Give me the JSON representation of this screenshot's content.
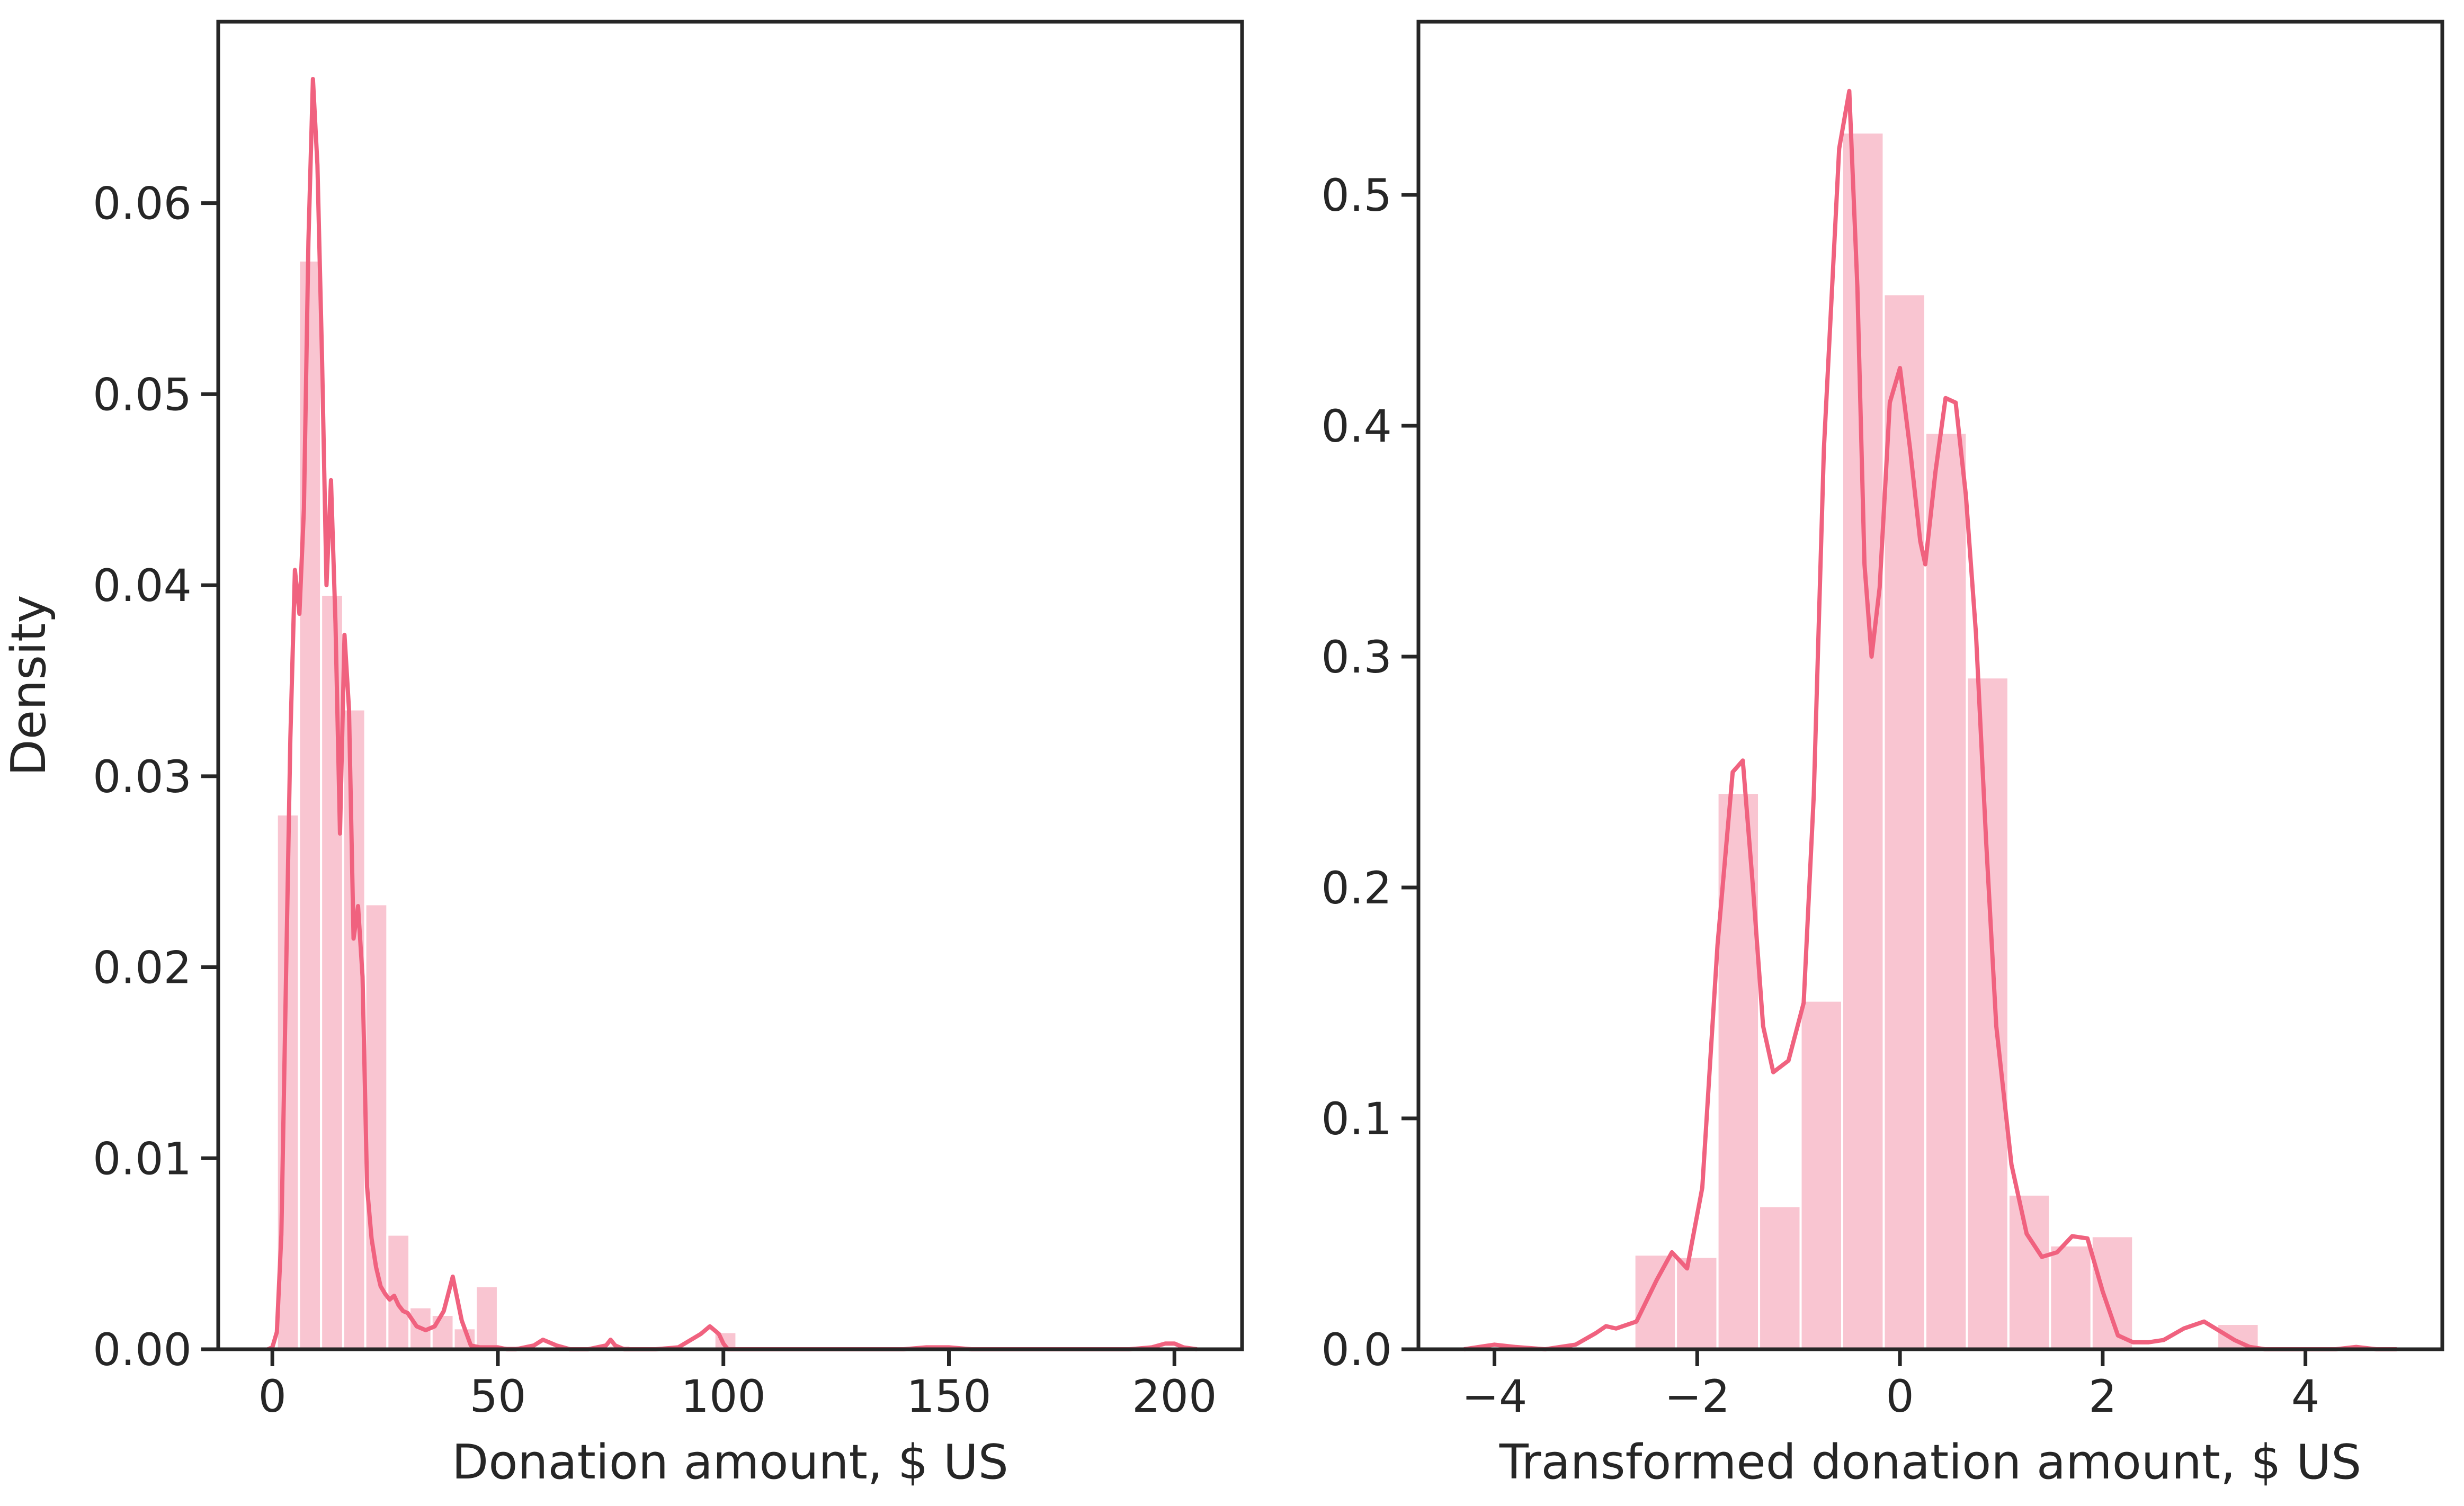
{
  "chart_data": [
    {
      "type": "bar",
      "title": "",
      "xlabel": "Donation amount, $ US",
      "ylabel": "Density",
      "xlim": [
        -12,
        215
      ],
      "ylim": [
        0,
        0.0695
      ],
      "xticks": [
        0,
        50,
        100,
        150,
        200
      ],
      "xtick_labels": [
        "0",
        "50",
        "100",
        "150",
        "200"
      ],
      "yticks": [
        0.0,
        0.01,
        0.02,
        0.03,
        0.04,
        0.05,
        0.06
      ],
      "ytick_labels": [
        "0.00",
        "0.01",
        "0.02",
        "0.03",
        "0.04",
        "0.05",
        "0.06"
      ],
      "grid": false,
      "bar_color": "#f7b6c6",
      "line_color": "#f0627f",
      "histogram": {
        "bin_width": 4.9,
        "bins": [
          {
            "x0": 1.0,
            "height": 0.028
          },
          {
            "x0": 5.9,
            "height": 0.057
          },
          {
            "x0": 10.8,
            "height": 0.0395
          },
          {
            "x0": 15.7,
            "height": 0.0335
          },
          {
            "x0": 20.6,
            "height": 0.0233
          },
          {
            "x0": 25.5,
            "height": 0.006
          },
          {
            "x0": 30.4,
            "height": 0.0022
          },
          {
            "x0": 35.3,
            "height": 0.0018
          },
          {
            "x0": 40.2,
            "height": 0.0011
          },
          {
            "x0": 45.1,
            "height": 0.0033
          },
          {
            "x0": 50.0,
            "height": 0.0002
          },
          {
            "x0": 54.9,
            "height": 0.0001
          },
          {
            "x0": 74.5,
            "height": 0.0002
          },
          {
            "x0": 98.0,
            "height": 0.0009
          },
          {
            "x0": 147.0,
            "height": 0.0001
          },
          {
            "x0": 196.0,
            "height": 0.0001
          }
        ]
      },
      "kde": {
        "x": [
          -1,
          0,
          1,
          2,
          3,
          4,
          5,
          6,
          7,
          8,
          9,
          10,
          11,
          12,
          13,
          14,
          15,
          16,
          17,
          18,
          19,
          20,
          21,
          22,
          23,
          24,
          25,
          26,
          27,
          28,
          29,
          30,
          32,
          34,
          36,
          38,
          40,
          42,
          44,
          46,
          48,
          50,
          52,
          54,
          56,
          58,
          60,
          63,
          66,
          70,
          72,
          74,
          75,
          76,
          78,
          80,
          85,
          90,
          95,
          97,
          99,
          100,
          101,
          103,
          105,
          110,
          120,
          130,
          140,
          145,
          150,
          155,
          160,
          170,
          180,
          190,
          195,
          198,
          200,
          202,
          205
        ],
        "y": [
          0.0,
          0.0001,
          0.0009,
          0.006,
          0.019,
          0.032,
          0.0408,
          0.0385,
          0.044,
          0.058,
          0.0665,
          0.062,
          0.052,
          0.04,
          0.0455,
          0.038,
          0.027,
          0.0374,
          0.0335,
          0.0215,
          0.0232,
          0.0195,
          0.0085,
          0.0058,
          0.0043,
          0.0033,
          0.0029,
          0.0026,
          0.0028,
          0.0023,
          0.002,
          0.0019,
          0.0012,
          0.001,
          0.0012,
          0.002,
          0.0038,
          0.0015,
          0.0002,
          0.0001,
          0.0001,
          0.0001,
          0.0,
          0.0,
          0.0001,
          0.0002,
          0.0005,
          0.0002,
          0.0,
          0.0,
          0.0001,
          0.0002,
          0.0005,
          0.0002,
          0.0,
          0.0,
          0.0,
          0.0001,
          0.0008,
          0.0012,
          0.0008,
          0.0003,
          0.0,
          0.0,
          0.0,
          0.0,
          0.0,
          0.0,
          0.0,
          0.0001,
          0.0001,
          0.0,
          0.0,
          0.0,
          0.0,
          0.0,
          0.0001,
          0.0003,
          0.0003,
          0.0001,
          0.0
        ]
      }
    },
    {
      "type": "bar",
      "title": "",
      "xlabel": "Transformed donation amount, $ US",
      "ylabel": "",
      "xlim": [
        -4.75,
        5.35
      ],
      "ylim": [
        0,
        0.575
      ],
      "xticks": [
        -4,
        -2,
        0,
        2,
        4
      ],
      "xtick_labels": [
        "−4",
        "−2",
        "0",
        "2",
        "4"
      ],
      "yticks": [
        0.0,
        0.1,
        0.2,
        0.3,
        0.4,
        0.5
      ],
      "ytick_labels": [
        "0.0",
        "0.1",
        "0.2",
        "0.3",
        "0.4",
        "0.5"
      ],
      "grid": false,
      "bar_color": "#f7b6c6",
      "line_color": "#f0627f",
      "histogram": {
        "bin_width": 0.41,
        "bins": [
          {
            "x0": -2.62,
            "height": 0.041
          },
          {
            "x0": -2.21,
            "height": 0.04
          },
          {
            "x0": -1.8,
            "height": 0.241
          },
          {
            "x0": -1.39,
            "height": 0.062
          },
          {
            "x0": -0.98,
            "height": 0.151
          },
          {
            "x0": -0.57,
            "height": 0.527
          },
          {
            "x0": -0.16,
            "height": 0.457
          },
          {
            "x0": 0.25,
            "height": 0.397
          },
          {
            "x0": 0.66,
            "height": 0.291
          },
          {
            "x0": 1.07,
            "height": 0.067
          },
          {
            "x0": 1.48,
            "height": 0.045
          },
          {
            "x0": 1.89,
            "height": 0.049
          },
          {
            "x0": 2.72,
            "height": 0.0
          },
          {
            "x0": 3.13,
            "height": 0.011
          }
        ]
      },
      "kde": {
        "x": [
          -4.3,
          -4.0,
          -3.8,
          -3.5,
          -3.2,
          -3.0,
          -2.9,
          -2.8,
          -2.6,
          -2.4,
          -2.25,
          -2.1,
          -1.95,
          -1.8,
          -1.65,
          -1.55,
          -1.45,
          -1.35,
          -1.25,
          -1.1,
          -0.95,
          -0.85,
          -0.75,
          -0.6,
          -0.5,
          -0.42,
          -0.35,
          -0.28,
          -0.2,
          -0.1,
          0.0,
          0.1,
          0.2,
          0.25,
          0.35,
          0.45,
          0.55,
          0.65,
          0.75,
          0.85,
          0.95,
          1.1,
          1.25,
          1.4,
          1.55,
          1.7,
          1.85,
          2.0,
          2.15,
          2.3,
          2.45,
          2.6,
          2.8,
          3.0,
          3.15,
          3.3,
          3.45,
          3.6,
          3.8,
          4.0,
          4.3,
          4.5,
          4.7,
          4.9
        ],
        "y": [
          0.0,
          0.002,
          0.001,
          0.0,
          0.002,
          0.007,
          0.01,
          0.009,
          0.012,
          0.03,
          0.042,
          0.035,
          0.07,
          0.175,
          0.25,
          0.255,
          0.2,
          0.14,
          0.12,
          0.125,
          0.15,
          0.24,
          0.39,
          0.52,
          0.545,
          0.46,
          0.34,
          0.3,
          0.33,
          0.41,
          0.425,
          0.39,
          0.35,
          0.34,
          0.38,
          0.412,
          0.41,
          0.37,
          0.31,
          0.22,
          0.14,
          0.08,
          0.05,
          0.04,
          0.042,
          0.049,
          0.048,
          0.025,
          0.006,
          0.003,
          0.003,
          0.004,
          0.009,
          0.012,
          0.008,
          0.004,
          0.001,
          0.0,
          0.0,
          0.0,
          0.0,
          0.001,
          0.0,
          0.0
        ]
      }
    }
  ]
}
